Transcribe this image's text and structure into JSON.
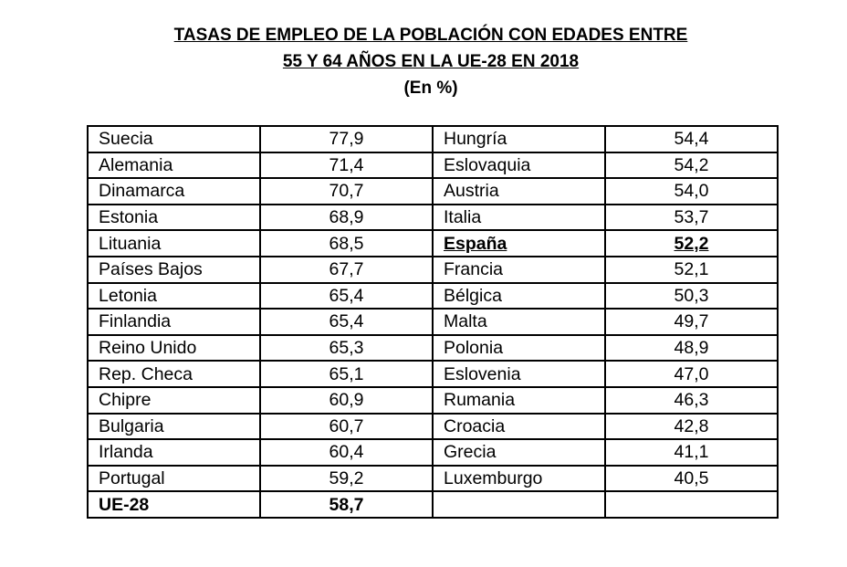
{
  "header": {
    "title_lines": [
      "TASAS DE EMPLEO DE LA POBLACIÓN CON EDADES ENTRE",
      "55 Y 64 AÑOS EN LA UE-28  EN 2018"
    ],
    "subtitle": "(En %)"
  },
  "table": {
    "left": [
      [
        "Suecia",
        "77,9"
      ],
      [
        "Alemania",
        "71,4"
      ],
      [
        "Dinamarca",
        "70,7"
      ],
      [
        "Estonia",
        "68,9"
      ],
      [
        "Lituania",
        "68,5"
      ],
      [
        "Países Bajos",
        "67,7"
      ],
      [
        "Letonia",
        "65,4"
      ],
      [
        "Finlandia",
        "65,4"
      ],
      [
        "Reino Unido",
        "65,3"
      ],
      [
        "Rep. Checa",
        "65,1"
      ],
      [
        "Chipre",
        "60,9"
      ],
      [
        "Bulgaria",
        "60,7"
      ],
      [
        "Irlanda",
        "60,4"
      ],
      [
        "Portugal",
        "59,2"
      ],
      [
        "UE-28",
        "58,7"
      ]
    ],
    "right": [
      [
        "Hungría",
        "54,4"
      ],
      [
        "Eslovaquia",
        "54,2"
      ],
      [
        "Austria",
        "54,0"
      ],
      [
        "Italia",
        "53,7"
      ],
      [
        "España",
        "52,2"
      ],
      [
        "Francia",
        "52,1"
      ],
      [
        "Bélgica",
        "50,3"
      ],
      [
        "Malta",
        "49,7"
      ],
      [
        "Polonia",
        "48,9"
      ],
      [
        "Eslovenia",
        "47,0"
      ],
      [
        "Rumania",
        "46,3"
      ],
      [
        "Croacia",
        "42,8"
      ],
      [
        "Grecia",
        "41,1"
      ],
      [
        "Luxemburgo",
        "40,5"
      ]
    ]
  }
}
